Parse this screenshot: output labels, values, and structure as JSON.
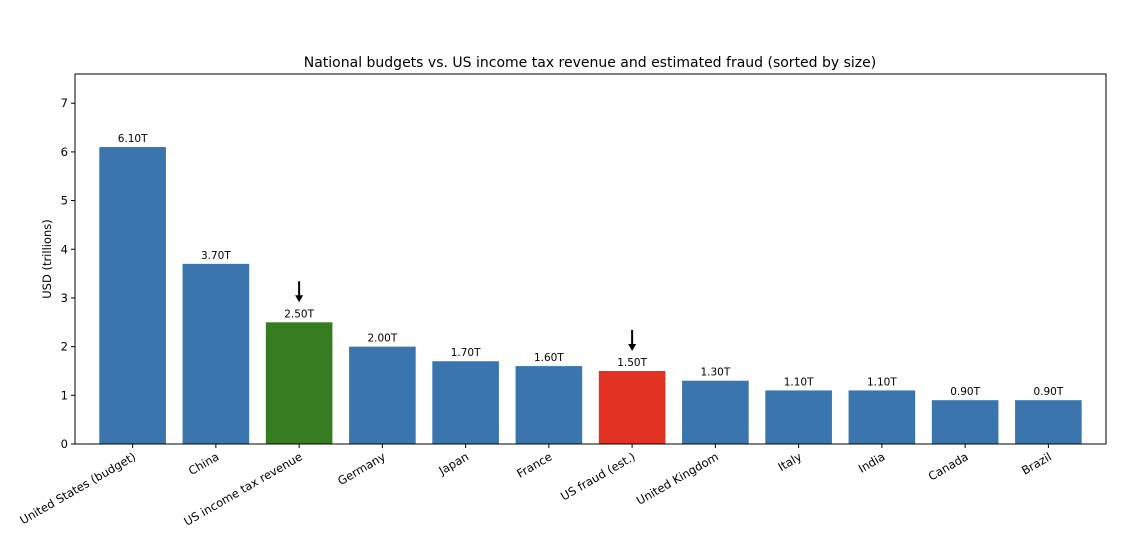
{
  "chart_data": {
    "type": "bar",
    "title": "National budgets vs. US income tax revenue and estimated fraud (sorted by size)",
    "xlabel": "",
    "ylabel": "USD (trillions)",
    "ylim": [
      0,
      7.6
    ],
    "yticks": [
      0,
      1,
      2,
      3,
      4,
      5,
      6,
      7
    ],
    "grid": false,
    "categories": [
      "United States (budget)",
      "China",
      "US income tax revenue",
      "Germany",
      "Japan",
      "France",
      "US fraud (est.)",
      "United Kingdom",
      "Italy",
      "India",
      "Canada",
      "Brazil"
    ],
    "values": [
      6.1,
      3.7,
      2.5,
      2.0,
      1.7,
      1.6,
      1.5,
      1.3,
      1.1,
      1.1,
      0.9,
      0.9
    ],
    "value_labels": [
      "6.10T",
      "3.70T",
      "2.50T",
      "2.00T",
      "1.70T",
      "1.60T",
      "1.50T",
      "1.30T",
      "1.10T",
      "1.10T",
      "0.90T",
      "0.90T"
    ],
    "colors": [
      "#3a75ad",
      "#3a75ad",
      "#367d22",
      "#3a75ad",
      "#3a75ad",
      "#3a75ad",
      "#e03123",
      "#3a75ad",
      "#3a75ad",
      "#3a75ad",
      "#3a75ad",
      "#3a75ad"
    ],
    "annotations": [
      {
        "type": "arrow-down",
        "category": "US income tax revenue"
      },
      {
        "type": "arrow-down",
        "category": "US fraud (est.)"
      }
    ]
  }
}
